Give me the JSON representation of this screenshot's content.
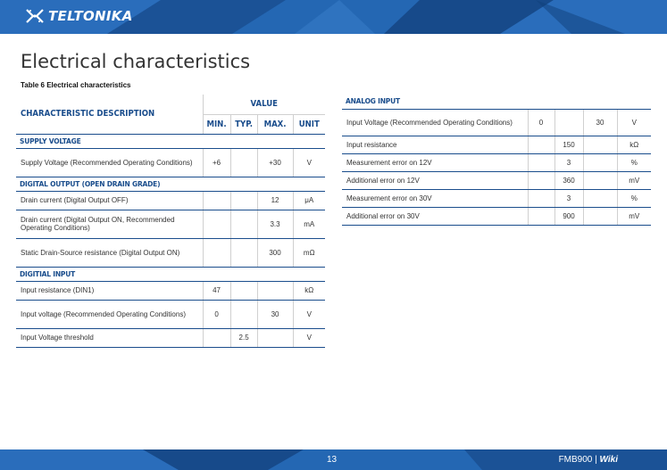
{
  "header": {
    "logo_text": "TELTONIKA",
    "logo_icon": "teltonika-x-logo"
  },
  "title": "Electrical characteristics",
  "caption": "Table 6 Electrical characteristics",
  "left_table": {
    "col_desc": "CHARACTERISTIC DESCRIPTION",
    "col_value": "VALUE",
    "col_min": "MIN.",
    "col_typ": "TYP.",
    "col_max": "MAX.",
    "col_unit": "UNIT",
    "sections": [
      {
        "name": "SUPPLY VOLTAGE",
        "rows": [
          {
            "desc": "Supply Voltage (Recommended Operating Conditions)",
            "min": "+6",
            "typ": "",
            "max": "+30",
            "unit": "V"
          }
        ]
      },
      {
        "name": "DIGITAL OUTPUT (OPEN DRAIN GRADE)",
        "rows": [
          {
            "desc": "Drain current (Digital Output OFF)",
            "min": "",
            "typ": "",
            "max": "12",
            "unit": "μA"
          },
          {
            "desc": "Drain current (Digital Output ON, Recommended Operating Conditions)",
            "min": "",
            "typ": "",
            "max": "3.3",
            "unit": "mA"
          },
          {
            "desc": "Static Drain-Source resistance (Digital Output ON)",
            "min": "",
            "typ": "",
            "max": "300",
            "unit": "mΩ"
          }
        ]
      },
      {
        "name": "DIGITIAL INPUT",
        "rows": [
          {
            "desc": "Input resistance (DIN1)",
            "min": "47",
            "typ": "",
            "max": "",
            "unit": "kΩ"
          },
          {
            "desc": "Input voltage (Recommended Operating Conditions)",
            "min": "0",
            "typ": "",
            "max": "30",
            "unit": "V"
          },
          {
            "desc": "Input Voltage threshold",
            "min": "",
            "typ": "2.5",
            "max": "",
            "unit": "V"
          }
        ]
      }
    ]
  },
  "right_table": {
    "section": "ANALOG INPUT",
    "rows": [
      {
        "desc": "Input Voltage (Recommended Operating Conditions)",
        "min": "0",
        "typ": "",
        "max": "30",
        "unit": "V"
      },
      {
        "desc": "Input resistance",
        "min": "",
        "typ": "150",
        "max": "",
        "unit": "kΩ"
      },
      {
        "desc": "Measurement error on 12V",
        "min": "",
        "typ": "3",
        "max": "",
        "unit": "%"
      },
      {
        "desc": "Additional error on 12V",
        "min": "",
        "typ": "360",
        "max": "",
        "unit": "mV"
      },
      {
        "desc": "Measurement error on 30V",
        "min": "",
        "typ": "3",
        "max": "",
        "unit": "%"
      },
      {
        "desc": "Additional error on 30V",
        "min": "",
        "typ": "900",
        "max": "",
        "unit": "mV"
      }
    ]
  },
  "footer": {
    "page_number": "13",
    "product": "FMB900",
    "separator": "|",
    "wiki": "Wiki"
  },
  "colors": {
    "brand_blue": "#1f5fa8",
    "heading_blue": "#1a4d8c"
  }
}
